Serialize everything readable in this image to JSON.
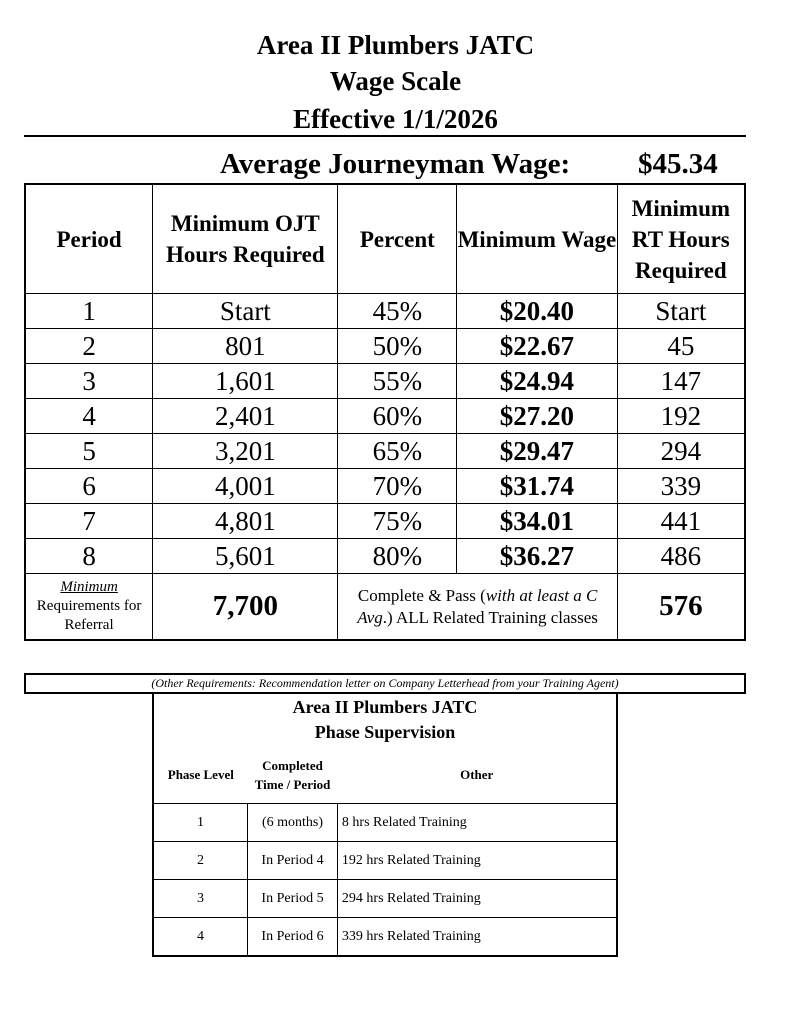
{
  "title": {
    "line1": "Area II Plumbers JATC",
    "line2": "Wage Scale",
    "line3": "Effective 1/1/2026"
  },
  "average": {
    "label": "Average Journeyman Wage:",
    "value": "$45.34"
  },
  "wage_table": {
    "headers": [
      "Period",
      "Minimum OJT Hours Required",
      "Percent",
      "Minimum Wage",
      "Minimum RT Hours Required"
    ],
    "rows": [
      [
        "1",
        "Start",
        "45%",
        "$20.40",
        "Start"
      ],
      [
        "2",
        "801",
        "50%",
        "$22.67",
        "45"
      ],
      [
        "3",
        "1,601",
        "55%",
        "$24.94",
        "147"
      ],
      [
        "4",
        "2,401",
        "60%",
        "$27.20",
        "192"
      ],
      [
        "5",
        "3,201",
        "65%",
        "$29.47",
        "294"
      ],
      [
        "6",
        "4,001",
        "70%",
        "$31.74",
        "339"
      ],
      [
        "7",
        "4,801",
        "75%",
        "$34.01",
        "441"
      ],
      [
        "8",
        "5,601",
        "80%",
        "$36.27",
        "486"
      ]
    ],
    "footer": {
      "label_underlined": "Minimum",
      "label_rest": "Requirements for Referral",
      "ojt": "7,700",
      "note_a": "Complete & Pass (",
      "note_italic": "with at least a C Avg",
      ".": "",
      "note_b": ".) ALL Related Training classes",
      "rt": "576"
    }
  },
  "other_requirements": "(Other Requirements: Recommendation letter on Company Letterhead  from your Training Agent)",
  "phase_table": {
    "title1": "Area II Plumbers JATC",
    "title2": "Phase Supervision",
    "headers": [
      "Phase Level",
      "Completed Time / Period",
      "Other"
    ],
    "rows": [
      [
        "1",
        "(6 months)",
        "8 hrs Related Training"
      ],
      [
        "2",
        "In Period 4",
        "192 hrs Related Training"
      ],
      [
        "3",
        "In Period 5",
        "294 hrs Related Training"
      ],
      [
        "4",
        "In Period 6",
        "339 hrs Related Training"
      ]
    ]
  }
}
